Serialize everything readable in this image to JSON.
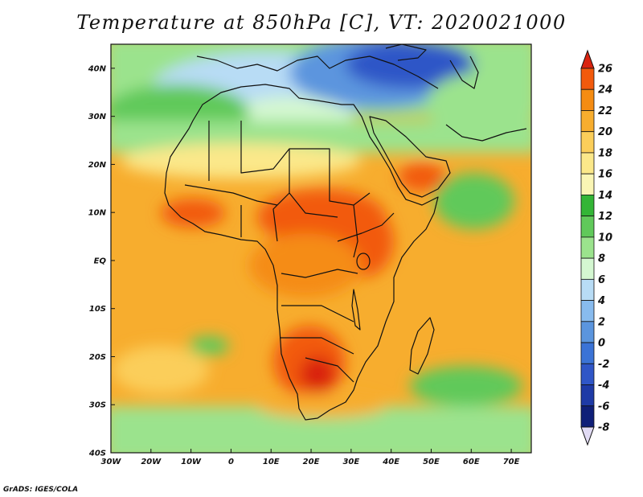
{
  "title": "Temperature at 850hPa [C], VT: 2020021000",
  "credit": "GrADS: IGES/COLA",
  "map": {
    "lat_labels": [
      "40N",
      "30N",
      "20N",
      "10N",
      "EQ",
      "10S",
      "20S",
      "30S",
      "40S"
    ],
    "lat_values": [
      40,
      30,
      20,
      10,
      0,
      -10,
      -20,
      -30,
      -40
    ],
    "lon_labels": [
      "30W",
      "20W",
      "10W",
      "0",
      "10E",
      "20E",
      "30E",
      "40E",
      "50E",
      "60E",
      "70E"
    ],
    "lon_values": [
      -30,
      -20,
      -10,
      0,
      10,
      20,
      30,
      40,
      50,
      60,
      70
    ]
  },
  "colorbar": {
    "labels": [
      "26",
      "24",
      "22",
      "20",
      "18",
      "16",
      "14",
      "12",
      "10",
      "8",
      "6",
      "4",
      "2",
      "0",
      "-2",
      "-4",
      "-6",
      "-8"
    ],
    "colors": [
      "#d9230f",
      "#f25a0c",
      "#f58c12",
      "#f7ad2e",
      "#fbce5a",
      "#fbe88a",
      "#faf5b4",
      "#33b536",
      "#60c95a",
      "#9be38d",
      "#d4f7d1",
      "#b8dcf5",
      "#88bbee",
      "#5b95de",
      "#3b73d6",
      "#2f56c7",
      "#1e3aa6",
      "#0f1f78",
      "#e1dbf4"
    ]
  }
}
